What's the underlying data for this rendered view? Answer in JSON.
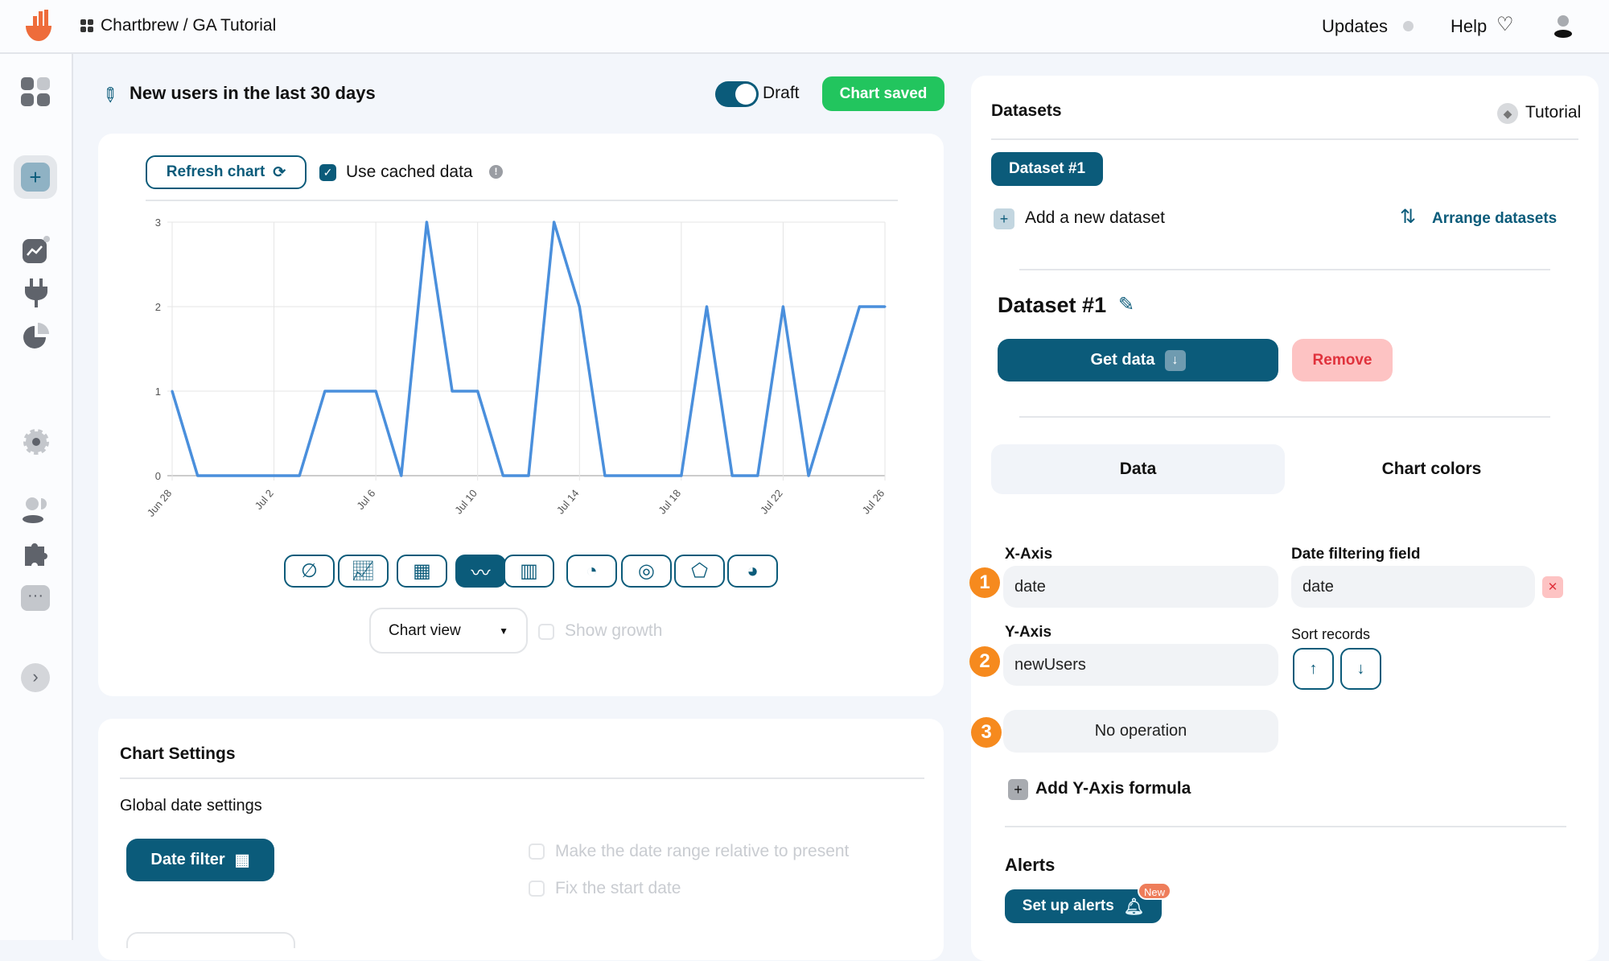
{
  "header": {
    "breadcrumb": "Chartbrew / GA Tutorial",
    "updates": "Updates",
    "help": "Help"
  },
  "chart": {
    "title": "New users in the last 30 days",
    "draft_label": "Draft",
    "draft_on": true,
    "saved_label": "Chart saved",
    "refresh_label": "Refresh chart",
    "cached_label": "Use cached data",
    "cached_checked": true,
    "view_select": "Chart view",
    "show_growth": "Show growth",
    "chart_types": [
      "none",
      "kpi",
      "table",
      "line",
      "bar",
      "pie",
      "doughnut",
      "radar",
      "polar"
    ],
    "active_type": "line"
  },
  "chart_data": {
    "type": "line",
    "x": [
      "Jun 28",
      "Jun 29",
      "Jun 30",
      "Jul 1",
      "Jul 2",
      "Jul 3",
      "Jul 4",
      "Jul 5",
      "Jul 6",
      "Jul 7",
      "Jul 8",
      "Jul 9",
      "Jul 10",
      "Jul 11",
      "Jul 12",
      "Jul 13",
      "Jul 14",
      "Jul 15",
      "Jul 16",
      "Jul 17",
      "Jul 18",
      "Jul 19",
      "Jul 20",
      "Jul 21",
      "Jul 22",
      "Jul 23",
      "Jul 24",
      "Jul 25",
      "Jul 26"
    ],
    "series": [
      {
        "values": [
          1,
          0,
          0,
          0,
          0,
          0,
          1,
          1,
          1,
          0,
          3,
          1,
          1,
          0,
          0,
          3,
          2,
          0,
          0,
          0,
          0,
          2,
          0,
          0,
          2,
          0,
          1,
          2,
          2
        ],
        "color": "#4a8fdc"
      }
    ],
    "xticks": [
      "Jun 28",
      "Jul 2",
      "Jul 6",
      "Jul 10",
      "Jul 14",
      "Jul 18",
      "Jul 22",
      "Jul 26"
    ],
    "yticks": [
      "0",
      "1",
      "2",
      "3"
    ],
    "ylim": [
      0,
      3
    ],
    "grid": true
  },
  "settings": {
    "title": "Chart Settings",
    "global_date": "Global date settings",
    "date_filter": "Date filter",
    "relative": "Make the date range relative to present",
    "fix_start": "Fix the start date"
  },
  "datasets": {
    "title": "Datasets",
    "tutorial": "Tutorial",
    "tab": "Dataset #1",
    "add": "Add a new dataset",
    "arrange": "Arrange datasets",
    "heading": "Dataset #1",
    "get_data": "Get data",
    "remove": "Remove",
    "tabs": [
      "Data",
      "Chart colors"
    ],
    "x_label": "X-Axis",
    "x_value": "date",
    "date_field_label": "Date filtering field",
    "date_field_value": "date",
    "y_label": "Y-Axis",
    "y_value": "newUsers",
    "sort_label": "Sort records",
    "operation": "No operation",
    "steps": [
      "1",
      "2",
      "3"
    ],
    "formula": "Add Y-Axis formula",
    "alerts_title": "Alerts",
    "alerts_btn": "Set up alerts",
    "new_badge": "New"
  },
  "colors": {
    "primary": "#0b5b7a",
    "success": "#22c55e",
    "step": "#f68a1e",
    "line": "#4a8fdc"
  }
}
